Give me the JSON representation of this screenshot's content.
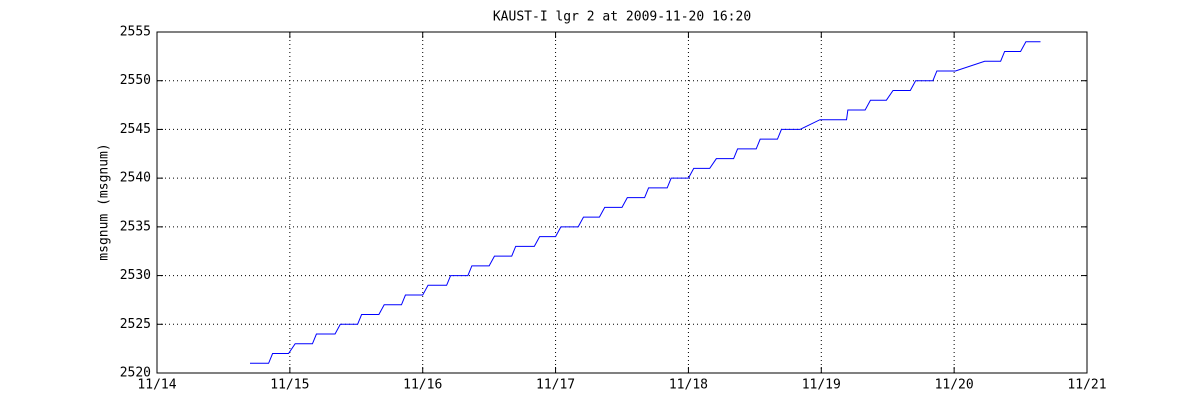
{
  "chart_data": {
    "type": "line",
    "title": "KAUST-I lgr 2 at 2009-11-20 16:20",
    "ylabel": "msgnum (msgnum)",
    "color": "#0000ff",
    "grid": true,
    "xlim": [
      14,
      21
    ],
    "xticks": [
      {
        "value": 14,
        "label": "11/14"
      },
      {
        "value": 15,
        "label": "11/15"
      },
      {
        "value": 16,
        "label": "11/16"
      },
      {
        "value": 17,
        "label": "11/17"
      },
      {
        "value": 18,
        "label": "11/18"
      },
      {
        "value": 19,
        "label": "11/19"
      },
      {
        "value": 20,
        "label": "11/20"
      },
      {
        "value": 21,
        "label": "11/21"
      }
    ],
    "ylim": [
      2520,
      2555
    ],
    "yticks": [
      2520,
      2525,
      2530,
      2535,
      2540,
      2545,
      2550,
      2555
    ],
    "x": [
      14.7,
      14.84,
      14.87,
      14.99,
      15.04,
      15.17,
      15.2,
      15.34,
      15.38,
      15.51,
      15.54,
      15.67,
      15.71,
      15.84,
      15.87,
      16.0,
      16.04,
      16.18,
      16.21,
      16.34,
      16.37,
      16.5,
      16.54,
      16.67,
      16.7,
      16.84,
      16.88,
      17.0,
      17.04,
      17.17,
      17.21,
      17.33,
      17.37,
      17.5,
      17.54,
      17.67,
      17.7,
      17.84,
      17.87,
      18.0,
      18.04,
      18.16,
      18.21,
      18.34,
      18.37,
      18.51,
      18.54,
      18.67,
      18.7,
      18.84,
      18.99,
      19.19,
      19.2,
      19.33,
      19.37,
      19.49,
      19.54,
      19.67,
      19.71,
      19.84,
      19.87,
      20.01,
      20.23,
      20.35,
      20.38,
      20.5,
      20.54,
      20.65
    ],
    "values": [
      2521,
      2521,
      2522,
      2522,
      2523,
      2523,
      2524,
      2524,
      2525,
      2525,
      2526,
      2526,
      2527,
      2527,
      2528,
      2528,
      2529,
      2529,
      2530,
      2530,
      2531,
      2531,
      2532,
      2532,
      2533,
      2533,
      2534,
      2534,
      2535,
      2535,
      2536,
      2536,
      2537,
      2537,
      2538,
      2538,
      2539,
      2539,
      2540,
      2540,
      2541,
      2541,
      2542,
      2542,
      2543,
      2543,
      2544,
      2544,
      2545,
      2545,
      2546,
      2546,
      2547,
      2547,
      2548,
      2548,
      2549,
      2549,
      2550,
      2550,
      2551,
      2551,
      2552,
      2552,
      2553,
      2553,
      2554,
      2554
    ]
  }
}
